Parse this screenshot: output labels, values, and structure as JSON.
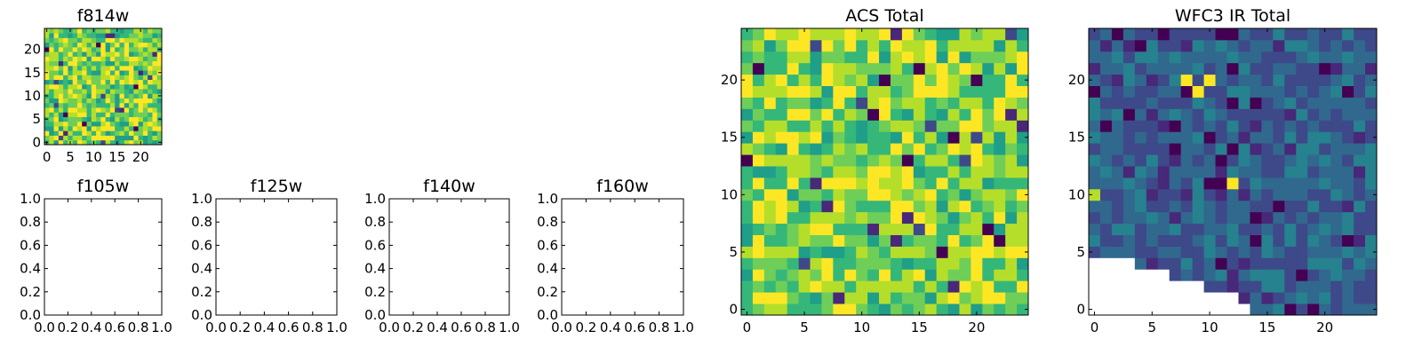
{
  "palette": [
    "#440154",
    "#482878",
    "#3e4989",
    "#31688e",
    "#26828e",
    "#1f9e89",
    "#35b779",
    "#6ece58",
    "#b5de2b",
    "#fde725"
  ],
  "chart_data": [
    {
      "id": "f814w",
      "type": "heatmap",
      "title": "f814w",
      "size": 25,
      "xticks": [
        "0",
        "5",
        "10",
        "15",
        "20"
      ],
      "yticks": [
        "0",
        "5",
        "10",
        "15",
        "20"
      ],
      "colormap": "viridis",
      "note": "random-looking per-pixel values, mostly 0.5–1.0 of the colour range"
    },
    {
      "id": "f105w",
      "type": "heatmap",
      "title": "f105w",
      "empty": true,
      "xticks": [
        "0.0",
        "0.2",
        "0.4",
        "0.6",
        "0.8",
        "1.0"
      ],
      "yticks": [
        "0.0",
        "0.2",
        "0.4",
        "0.6",
        "0.8",
        "1.0"
      ],
      "xlim": [
        0,
        1
      ],
      "ylim": [
        0,
        1
      ]
    },
    {
      "id": "f125w",
      "type": "heatmap",
      "title": "f125w",
      "empty": true,
      "xticks": [
        "0.0",
        "0.2",
        "0.4",
        "0.6",
        "0.8",
        "1.0"
      ],
      "yticks": [
        "0.0",
        "0.2",
        "0.4",
        "0.6",
        "0.8",
        "1.0"
      ],
      "xlim": [
        0,
        1
      ],
      "ylim": [
        0,
        1
      ]
    },
    {
      "id": "f140w",
      "type": "heatmap",
      "title": "f140w",
      "empty": true,
      "xticks": [
        "0.0",
        "0.2",
        "0.4",
        "0.6",
        "0.8",
        "1.0"
      ],
      "yticks": [
        "0.0",
        "0.2",
        "0.4",
        "0.6",
        "0.8",
        "1.0"
      ],
      "xlim": [
        0,
        1
      ],
      "ylim": [
        0,
        1
      ]
    },
    {
      "id": "f160w",
      "type": "heatmap",
      "title": "f160w",
      "empty": true,
      "xticks": [
        "0.0",
        "0.2",
        "0.4",
        "0.6",
        "0.8",
        "1.0"
      ],
      "yticks": [
        "0.0",
        "0.2",
        "0.4",
        "0.6",
        "0.8",
        "1.0"
      ],
      "xlim": [
        0,
        1
      ],
      "ylim": [
        0,
        1
      ]
    },
    {
      "id": "acs-total",
      "type": "heatmap",
      "title": "ACS Total",
      "size": 25,
      "xticks": [
        "0",
        "5",
        "10",
        "15",
        "20"
      ],
      "yticks": [
        "0",
        "5",
        "10",
        "15",
        "20"
      ],
      "colormap": "viridis"
    },
    {
      "id": "wfc3-total",
      "type": "heatmap",
      "title": "WFC3 IR Total",
      "size": 25,
      "xticks": [
        "0",
        "5",
        "10",
        "15",
        "20"
      ],
      "yticks": [
        "0",
        "5",
        "10",
        "15",
        "20"
      ],
      "colormap": "viridis",
      "bright_features": [
        {
          "x": 8,
          "y": 20,
          "value": 0.97
        },
        {
          "x": 9,
          "y": 19,
          "value": 1.0
        },
        {
          "x": 10,
          "y": 20,
          "value": 1.0
        },
        {
          "x": 12,
          "y": 11,
          "value": 0.9
        },
        {
          "x": 0,
          "y": 10,
          "value": 0.85
        }
      ],
      "missing_region": "lower-left wedge below a staircase edge (blank, no data)"
    }
  ]
}
